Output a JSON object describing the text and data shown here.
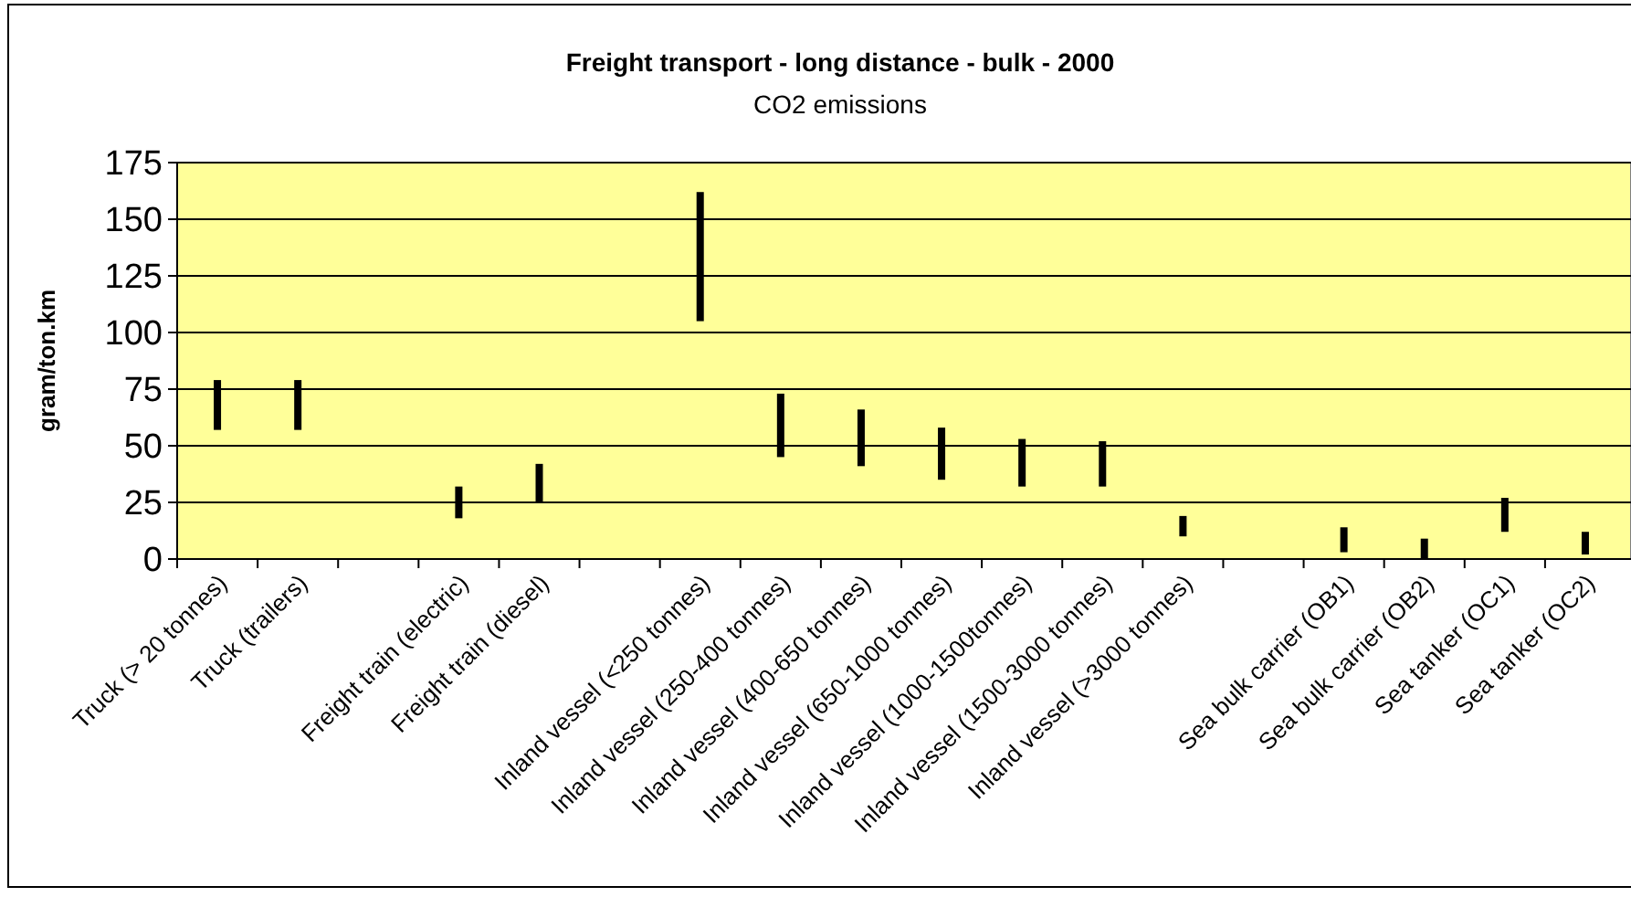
{
  "chart_data": {
    "type": "bar",
    "title": "Freight transport - long distance - bulk - 2000",
    "subtitle": "CO2 emissions",
    "ylabel": "gram/ton.km",
    "categories": [
      "Truck (> 20 tonnes)",
      "Truck (trailers)",
      null,
      "Freight train (electric)",
      "Freight train (diesel)",
      null,
      "Inland vessel (<250 tonnes)",
      "Inland vessel (250-400 tonnes)",
      "Inland vessel (400-650 tonnes)",
      "Inland vessel (650-1000 tonnes)",
      "Inland vessel (1000-1500tonnes)",
      "Inland vessel (1500-3000 tonnes)",
      "Inland vessel (>3000 tonnes)",
      null,
      "Sea bulk carrier (OB1)",
      "Sea bulk carrier (OB2)",
      "Sea tanker (OC1)",
      "Sea tanker (OC2)"
    ],
    "base": [
      57,
      57,
      null,
      18,
      25,
      null,
      105,
      45,
      41,
      35,
      32,
      32,
      10,
      null,
      3,
      0,
      12,
      2
    ],
    "values": [
      22,
      22,
      null,
      14,
      17,
      null,
      57,
      28,
      25,
      23,
      21,
      20,
      9,
      null,
      11,
      9,
      15,
      10
    ],
    "color": "#000000",
    "ylim": [
      0,
      175
    ],
    "yticks": [
      0,
      25,
      50,
      75,
      100,
      125,
      150,
      175
    ],
    "grid": "y"
  }
}
